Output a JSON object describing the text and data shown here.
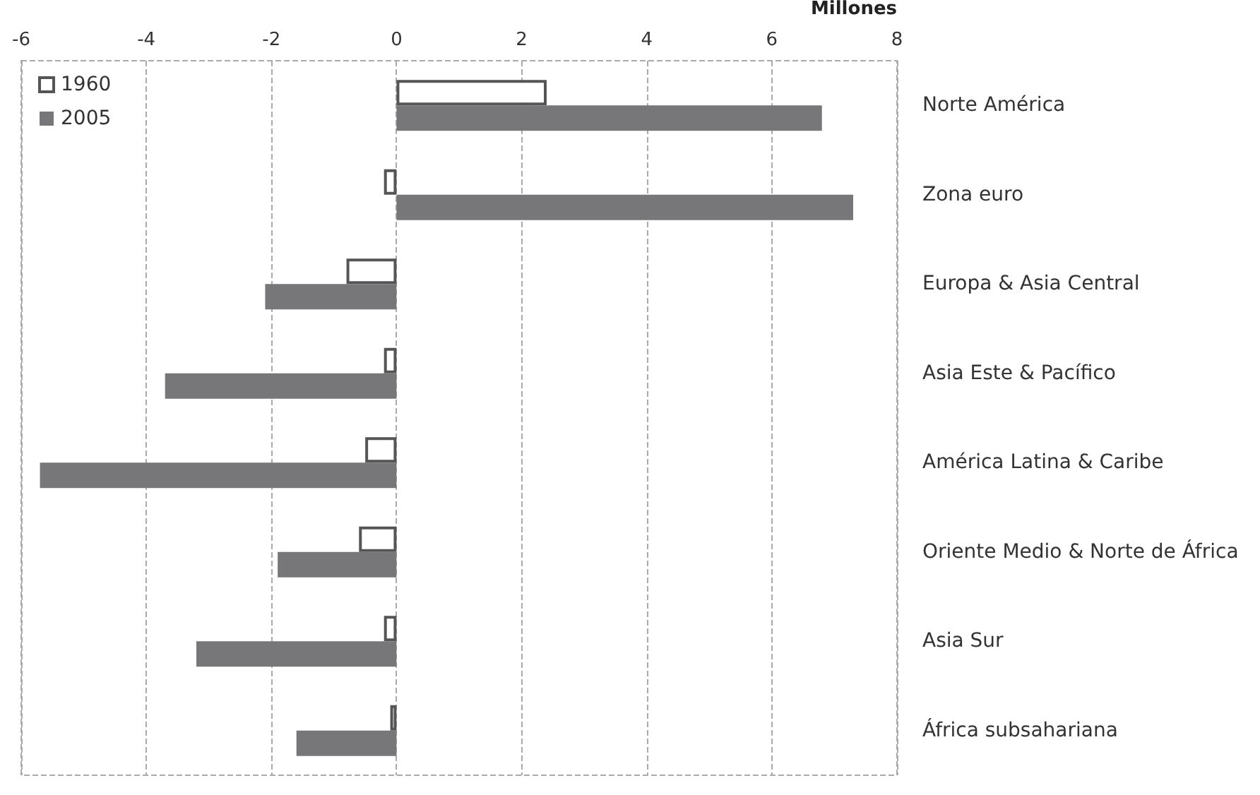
{
  "chart_data": {
    "type": "bar",
    "orientation": "horizontal",
    "xlabel": "Millones",
    "categories": [
      "Norte América",
      "Zona euro",
      "Europa & Asia Central",
      "Asia Este & Pacífico",
      "América Latina & Caribe",
      "Oriente Medio & Norte de África",
      "Asia Sur",
      "África subsahariana"
    ],
    "series": [
      {
        "name": "1960",
        "color": "#555555",
        "values": [
          2.4,
          -0.2,
          -0.8,
          -0.2,
          -0.5,
          -0.6,
          -0.2,
          -0.1
        ]
      },
      {
        "name": "2005",
        "color": "#77777a",
        "values": [
          6.8,
          7.3,
          -2.1,
          -3.7,
          -5.7,
          -1.9,
          -3.2,
          -1.6
        ]
      }
    ],
    "xlim": [
      -6,
      8
    ],
    "xticks": [
      -6,
      -4,
      -2,
      0,
      2,
      4,
      6,
      8
    ],
    "grid": "x",
    "legend": "top left"
  }
}
